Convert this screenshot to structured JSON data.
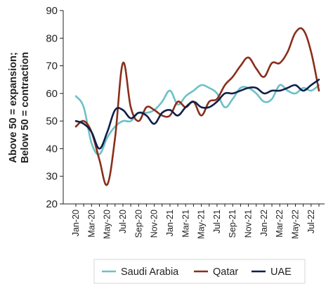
{
  "chart_data": {
    "type": "line",
    "ylabel_line1": "Above 50 = expansion;",
    "ylabel_line2": "Below 50 = contraction",
    "ylim": [
      20,
      90
    ],
    "yticks": [
      20,
      30,
      40,
      50,
      60,
      70,
      80,
      90
    ],
    "grid": false,
    "legend_position": "bottom",
    "x": [
      "Jan-20",
      "Feb-20",
      "Mar-20",
      "Apr-20",
      "May-20",
      "Jun-20",
      "Jul-20",
      "Aug-20",
      "Sep-20",
      "Oct-20",
      "Nov-20",
      "Dec-20",
      "Jan-21",
      "Feb-21",
      "Mar-21",
      "Apr-21",
      "May-21",
      "Jun-21",
      "Jul-21",
      "Aug-21",
      "Sep-21",
      "Oct-21",
      "Nov-21",
      "Dec-21",
      "Jan-22",
      "Feb-22",
      "Mar-22",
      "Apr-22",
      "May-22",
      "Jun-22",
      "Jul-22",
      "Aug-22"
    ],
    "xtick_labels": [
      "Jan-20",
      "Mar-20",
      "May-20",
      "Jul-20",
      "Sep-20",
      "Nov-20",
      "Jan-21",
      "Mar-21",
      "May-21",
      "Jul-21",
      "Sep-21",
      "Nov-21",
      "Jan-22",
      "Mar-22",
      "May-22",
      "Jul-22"
    ],
    "series": [
      {
        "name": "Saudi Arabia",
        "color": "#6cc1c6",
        "values": [
          59,
          55,
          42,
          38,
          44,
          48,
          50,
          50,
          53,
          53,
          54,
          57,
          61,
          56,
          59,
          61,
          63,
          62,
          60,
          55,
          58,
          62,
          62,
          60,
          57,
          58,
          63,
          61,
          60,
          62,
          61,
          63
        ]
      },
      {
        "name": "Qatar",
        "color": "#8a2e1a",
        "values": [
          48,
          50,
          46,
          36,
          27,
          44,
          71,
          55,
          50,
          55,
          54,
          52,
          52,
          57,
          55,
          57,
          52,
          57,
          58,
          63,
          66,
          70,
          73,
          69,
          66,
          71,
          71,
          75,
          82,
          83,
          75,
          61
        ]
      },
      {
        "name": "UAE",
        "color": "#0f1f4a",
        "values": [
          50,
          49,
          46,
          40,
          46,
          54,
          54,
          51,
          53,
          52,
          49,
          53,
          54,
          52,
          55,
          57,
          55,
          55,
          57,
          60,
          60,
          61,
          62,
          62,
          60,
          61,
          61,
          62,
          63,
          61,
          63,
          65
        ]
      }
    ]
  }
}
